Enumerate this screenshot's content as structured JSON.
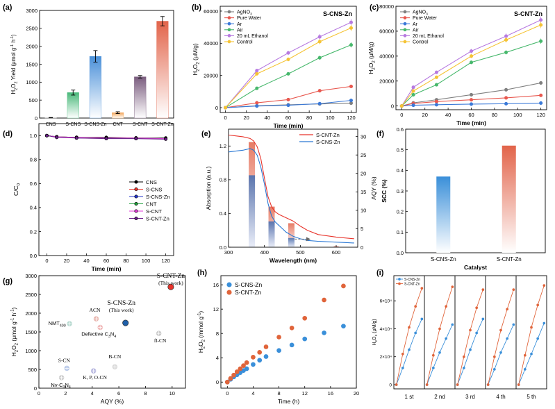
{
  "chart_data": [
    {
      "panel": "(a)",
      "type": "bar",
      "ylabel": "H2O2 Yield (μmol g-1 h-1)",
      "ylabel_main": "H",
      "ylabel_sub1": "2",
      "ylabel_mid": "O",
      "ylabel_sub2": "2",
      "ylabel_rest": " Yield (μmol g",
      "ylabel_sup1": "-1",
      "ylabel_h": " h",
      "ylabel_sup2": "-1",
      "ylabel_close": ")",
      "ylim": [
        0,
        3000
      ],
      "yticks": [
        0,
        500,
        1000,
        1500,
        2000,
        2500,
        3000
      ],
      "categories": [
        "CNS",
        "S-CNS",
        "S-CNS-Zn",
        "CNT",
        "S-CNT",
        "S-CNT-Zn"
      ],
      "values": [
        10,
        710,
        1720,
        150,
        1150,
        2700
      ],
      "errors": [
        5,
        70,
        160,
        25,
        35,
        130
      ],
      "colors": [
        "#bfbfbf",
        "#49b97a",
        "#4a90d9",
        "#f2a65a",
        "#7a5c7e",
        "#e2644a"
      ]
    },
    {
      "panel": "(b)",
      "type": "line",
      "title": "S-CNS-Zn",
      "xlabel": "Time (min)",
      "ylabel": "H2O2 (μM/g)",
      "xlim": [
        -5,
        125
      ],
      "ylim": [
        -3000,
        63000
      ],
      "xticks": [
        0,
        20,
        40,
        60,
        80,
        100,
        120
      ],
      "yticks": [
        0,
        20000,
        40000,
        60000
      ],
      "x": [
        0,
        30,
        60,
        90,
        120
      ],
      "series": [
        {
          "name": "AgNO3",
          "color": "#7f7f7f",
          "values": [
            0,
            1200,
            1800,
            2300,
            2800
          ]
        },
        {
          "name": "Pure Water",
          "color": "#e8584f",
          "values": [
            0,
            3000,
            5000,
            10500,
            13200
          ]
        },
        {
          "name": "Ar",
          "color": "#3a79d8",
          "values": [
            0,
            1000,
            1500,
            2500,
            4500
          ]
        },
        {
          "name": "Air",
          "color": "#47b86c",
          "values": [
            0,
            12000,
            21000,
            31000,
            39000
          ]
        },
        {
          "name": "20 mL Ethanol",
          "color": "#b77ae0",
          "values": [
            0,
            23000,
            34000,
            44000,
            53000
          ]
        },
        {
          "name": "Control",
          "color": "#f5c334",
          "values": [
            0,
            21000,
            30000,
            41000,
            49500
          ]
        }
      ]
    },
    {
      "panel": "(c)",
      "type": "line",
      "title": "S-CNT-Zn",
      "xlabel": "Time (min)",
      "ylabel": "H2O2 (μM/g)",
      "xlim": [
        -5,
        125
      ],
      "ylim": [
        -3000,
        80000
      ],
      "xticks": [
        0,
        20,
        40,
        60,
        80,
        100,
        120
      ],
      "yticks": [
        0,
        20000,
        40000,
        60000,
        80000
      ],
      "x": [
        0,
        10,
        30,
        60,
        90,
        120
      ],
      "series": [
        {
          "name": "AgNO3",
          "color": "#7f7f7f",
          "values": [
            0,
            2500,
            5000,
            9000,
            13000,
            18500
          ]
        },
        {
          "name": "Pure Water",
          "color": "#e8584f",
          "values": [
            0,
            2000,
            3500,
            5000,
            6500,
            8500
          ]
        },
        {
          "name": "Ar",
          "color": "#3a79d8",
          "values": [
            0,
            600,
            1000,
            1500,
            1800,
            2300
          ]
        },
        {
          "name": "Air",
          "color": "#47b86c",
          "values": [
            0,
            9000,
            17000,
            35000,
            43000,
            52000
          ]
        },
        {
          "name": "20 mL Ethanol",
          "color": "#b77ae0",
          "values": [
            0,
            15000,
            27000,
            44000,
            56000,
            69000
          ]
        },
        {
          "name": "Control",
          "color": "#f5c334",
          "values": [
            0,
            12000,
            23000,
            40000,
            53000,
            65000
          ]
        }
      ]
    },
    {
      "panel": "(d)",
      "type": "line",
      "xlabel": "Time (min)",
      "ylabel": "C/C0",
      "xlim": [
        -8,
        128
      ],
      "ylim": [
        0,
        1.1
      ],
      "xticks": [
        0,
        20,
        40,
        60,
        80,
        100,
        120
      ],
      "yticks": [
        0,
        0.2,
        0.4,
        0.6,
        0.8,
        1.0
      ],
      "x": [
        0,
        10,
        30,
        60,
        90,
        120
      ],
      "series": [
        {
          "name": "CNS",
          "color": "#000000",
          "values": [
            1.0,
            0.99,
            0.985,
            0.985,
            0.98,
            0.98
          ]
        },
        {
          "name": "S-CNS",
          "color": "#e8332a",
          "values": [
            1.0,
            0.99,
            0.985,
            0.98,
            0.98,
            0.975
          ]
        },
        {
          "name": "S-CNS-Zn",
          "color": "#2233cc",
          "values": [
            1.0,
            0.99,
            0.98,
            0.98,
            0.975,
            0.975
          ]
        },
        {
          "name": "CNT",
          "color": "#1e9e3a",
          "values": [
            1.0,
            0.99,
            0.985,
            0.98,
            0.98,
            0.975
          ]
        },
        {
          "name": "S-CNT",
          "color": "#e23ad8",
          "values": [
            1.0,
            0.99,
            0.985,
            0.98,
            0.98,
            0.975
          ]
        },
        {
          "name": "S-CNT-Zn",
          "color": "#6b1f8a",
          "values": [
            1.0,
            0.985,
            0.98,
            0.975,
            0.975,
            0.97
          ]
        }
      ]
    },
    {
      "panel": "(e)",
      "type": "line",
      "xlabel": "Wavelength (nm)",
      "ylabel": "Absorption (a.u.)",
      "ylabel_right": "AQY (%)",
      "xlim": [
        300,
        660
      ],
      "ylim": [
        0,
        1.4
      ],
      "ylim_right": [
        0,
        32
      ],
      "xticks": [
        300,
        400,
        500,
        600
      ],
      "yticks": [
        0,
        0.4,
        0.8,
        1.2
      ],
      "yticks_right": [
        0,
        5,
        10,
        15,
        20,
        25,
        30
      ],
      "series": [
        {
          "name": "S-CNT-Zn",
          "color": "#e8332a",
          "x": [
            300,
            320,
            340,
            360,
            370,
            380,
            390,
            400,
            410,
            420,
            430,
            440,
            450,
            460,
            480,
            500,
            520,
            550,
            600,
            650
          ],
          "values": [
            1.33,
            1.32,
            1.31,
            1.29,
            1.26,
            1.19,
            1.05,
            0.82,
            0.6,
            0.48,
            0.42,
            0.39,
            0.37,
            0.35,
            0.31,
            0.25,
            0.2,
            0.15,
            0.12,
            0.1
          ]
        },
        {
          "name": "S-CNS-Zn",
          "color": "#2a78d4",
          "x": [
            300,
            320,
            340,
            360,
            370,
            380,
            390,
            400,
            410,
            420,
            430,
            440,
            450,
            460,
            480,
            500,
            520,
            550,
            600,
            650
          ],
          "values": [
            1.13,
            1.14,
            1.15,
            1.17,
            1.15,
            1.09,
            0.95,
            0.75,
            0.52,
            0.37,
            0.3,
            0.26,
            0.22,
            0.18,
            0.13,
            0.1,
            0.08,
            0.07,
            0.06,
            0.05
          ]
        }
      ],
      "aqy_bars": [
        {
          "wavelength": 365,
          "s_cnt_zn": 28.5,
          "s_cns_zn": 19.5
        },
        {
          "wavelength": 420,
          "s_cnt_zn": 11,
          "s_cns_zn": 7
        },
        {
          "wavelength": 475,
          "s_cnt_zn": 6.5,
          "s_cns_zn": 2.5
        },
        {
          "wavelength": 600,
          "s_cnt_zn": 0.3,
          "s_cns_zn": 0.1
        }
      ]
    },
    {
      "panel": "(f)",
      "type": "bar",
      "xlabel": "Catalyst",
      "ylabel": "SCC (%)",
      "ylim": [
        0,
        0.6
      ],
      "yticks": [
        0.0,
        0.1,
        0.2,
        0.3,
        0.4,
        0.5,
        0.6
      ],
      "categories": [
        "S-CNS-Zn",
        "S-CNT-Zn"
      ],
      "values": [
        0.37,
        0.52
      ],
      "colors": [
        "#3a8fd9",
        "#e2644a"
      ]
    },
    {
      "panel": "(g)",
      "type": "scatter",
      "xlabel": "AQY (%)",
      "ylabel": "H2O2 (μmol g-1 h-1)",
      "xlim": [
        0,
        11
      ],
      "ylim": [
        0,
        3000
      ],
      "xticks": [
        0,
        2,
        4,
        6,
        8,
        10
      ],
      "yticks": [
        0,
        500,
        1000,
        1500,
        2000,
        2500,
        3000
      ],
      "points": [
        {
          "name": "S-CNT-Zn",
          "sub": "(This work)",
          "x": 9.9,
          "y": 2700,
          "color": "#e8332a"
        },
        {
          "name": "S-CNS-Zn",
          "sub": "(This work)",
          "x": 6.5,
          "y": 1740,
          "color": "#1f5fa8"
        },
        {
          "name": "ACN",
          "sub": "",
          "x": 4.3,
          "y": 1850,
          "color": "#e9b7b0"
        },
        {
          "name": "NMT",
          "sub": "400",
          "x": 2.3,
          "y": 1720,
          "color": "#b7d9d0"
        },
        {
          "name": "Defective C3N4",
          "sub": "",
          "x": 4.6,
          "y": 1620,
          "color": "#f0b8b8"
        },
        {
          "name": "fl-CN",
          "sub": "",
          "x": 9.0,
          "y": 1460,
          "color": "#c9c9c9"
        },
        {
          "name": "S-CN",
          "sub": "",
          "x": 2.1,
          "y": 530,
          "color": "#b8c8e8"
        },
        {
          "name": "B-CN",
          "sub": "",
          "x": 5.7,
          "y": 570,
          "color": "#d8d8d8"
        },
        {
          "name": "K, P, O-CN",
          "sub": "",
          "x": 4.1,
          "y": 460,
          "color": "#b8b8e0"
        },
        {
          "name": "Nv-C3N4",
          "sub": "",
          "x": 1.7,
          "y": 280,
          "color": "#cfcfcf"
        }
      ]
    },
    {
      "panel": "(h)",
      "type": "scatter",
      "xlabel": "Time (h)",
      "ylabel": "H2O2 (mmol g-1)",
      "xlim": [
        -1,
        20
      ],
      "ylim": [
        -1,
        17.5
      ],
      "xticks": [
        0,
        4,
        8,
        12,
        16,
        20
      ],
      "yticks": [
        0,
        4,
        8,
        12,
        16
      ],
      "series": [
        {
          "name": "S-CNS-Zn",
          "color": "#3a8fd9",
          "x": [
            0,
            0.5,
            1,
            1.5,
            2,
            2.5,
            3,
            4,
            5,
            6,
            8,
            10,
            12,
            15,
            18
          ],
          "values": [
            0,
            0.45,
            0.85,
            1.2,
            1.55,
            1.9,
            2.2,
            2.9,
            3.6,
            4.2,
            5.2,
            6.1,
            7.1,
            8.1,
            9.2
          ]
        },
        {
          "name": "S-CNT-Zn",
          "color": "#e0643a",
          "x": [
            0,
            0.5,
            1,
            1.5,
            2,
            2.5,
            3,
            4,
            5,
            6,
            8,
            10,
            12,
            15,
            18
          ],
          "values": [
            0,
            0.6,
            1.15,
            1.7,
            2.2,
            2.7,
            3.2,
            4.1,
            4.9,
            5.8,
            7.4,
            8.9,
            10.5,
            13.5,
            15.8
          ]
        }
      ]
    },
    {
      "panel": "(i)",
      "type": "line",
      "xlabel_cycles": [
        "1 st",
        "2 nd",
        "3 rd",
        "4 th",
        "5 th"
      ],
      "ylabel": "H2O2 (μM/g)",
      "ylim": [
        -3000,
        78000
      ],
      "yticks": [
        0,
        20000,
        40000,
        60000
      ],
      "ytick_labels": [
        "0",
        "2×10⁴",
        "4×10⁴",
        "6×10⁴"
      ],
      "x": [
        0,
        1,
        2,
        3,
        4
      ],
      "series": [
        {
          "name": "S-CNS-Zn",
          "color": "#3a8fd9",
          "cycles": [
            [
              0,
              12000,
              25000,
              37000,
              47000
            ],
            [
              0,
              12000,
              23000,
              33000,
              43000
            ],
            [
              0,
              12000,
              25000,
              37000,
              47000
            ],
            [
              0,
              11000,
              23000,
              33000,
              43000
            ],
            [
              0,
              11000,
              22000,
              33000,
              44000
            ]
          ]
        },
        {
          "name": "S-CNT-Zn",
          "color": "#e0643a",
          "cycles": [
            [
              0,
              22000,
              41000,
              56000,
              69000
            ],
            [
              0,
              21000,
              40000,
              56000,
              70000
            ],
            [
              0,
              20000,
              39000,
              55000,
              68000
            ],
            [
              0,
              20000,
              39000,
              54000,
              68000
            ],
            [
              0,
              21000,
              41000,
              57000,
              71000
            ]
          ]
        }
      ]
    }
  ]
}
